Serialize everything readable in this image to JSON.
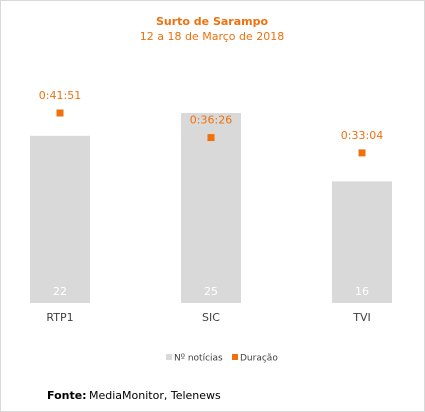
{
  "chart_data": {
    "type": "bar-marker",
    "title": "Surto de Sarampo",
    "subtitle": "12 a 18 de Março de 2018",
    "categories": [
      "RTP1",
      "SIC",
      "TVI"
    ],
    "series": [
      {
        "name": "Nº notícias",
        "color": "#d9d9d9",
        "values": [
          22,
          25,
          16
        ]
      },
      {
        "name": "Duração",
        "color": "#f0700c",
        "values": [
          2511,
          2186,
          1984
        ],
        "value_labels": [
          "0:41:51",
          "0:36:26",
          "0:33:04"
        ]
      }
    ]
  },
  "footer": {
    "label": "Fonte:",
    "text": "MediaMonitor, Telenews"
  }
}
